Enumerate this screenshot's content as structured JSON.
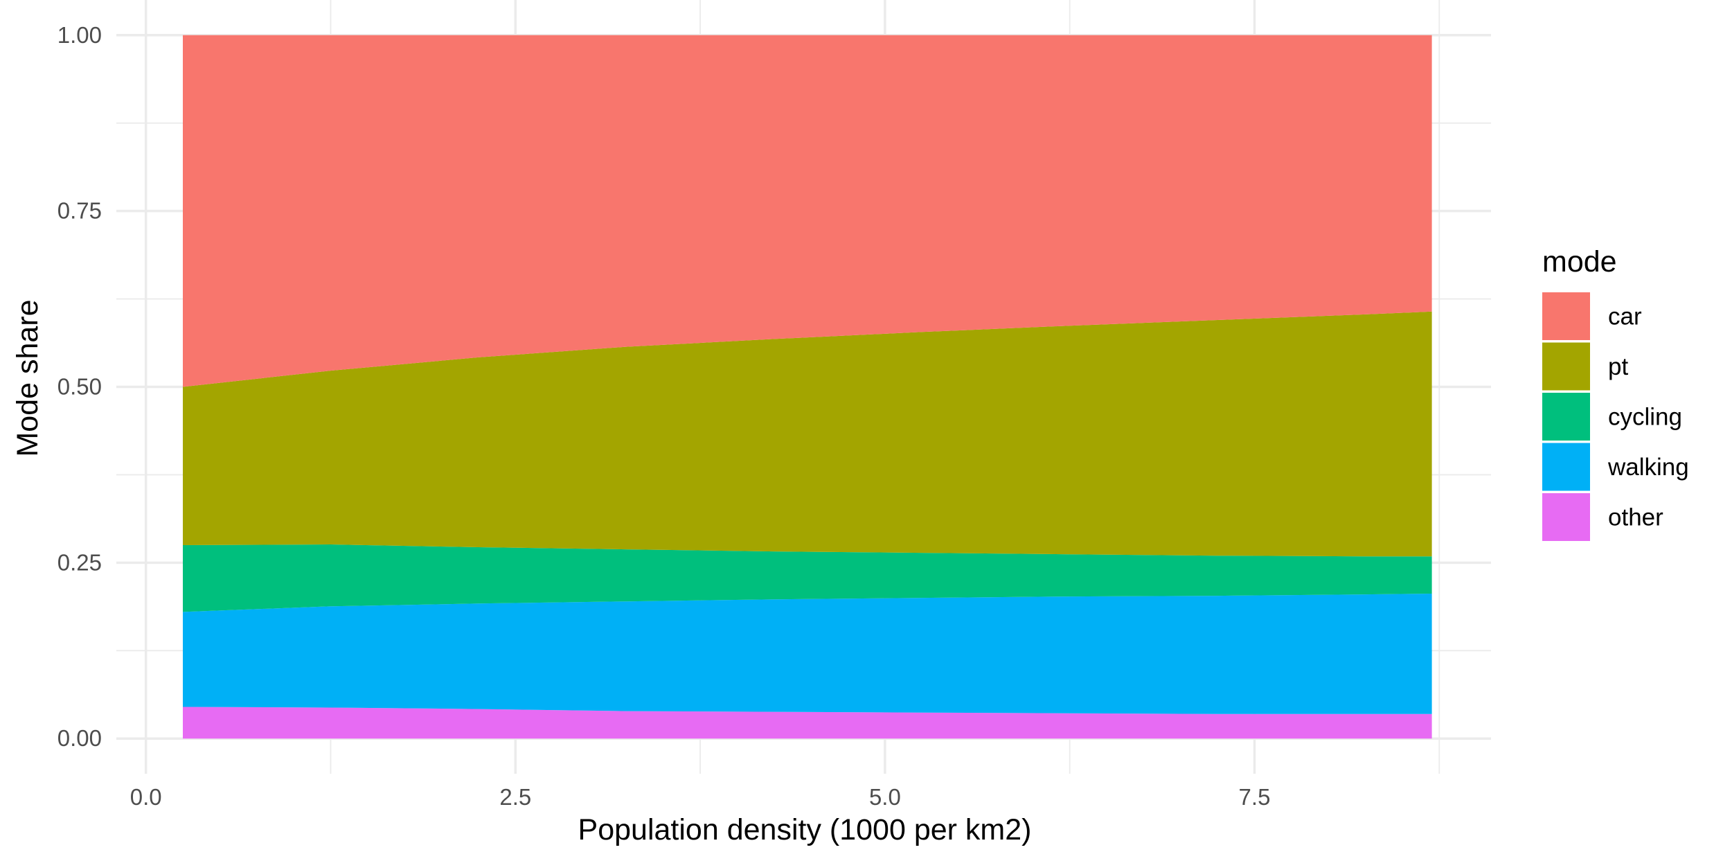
{
  "chart_data": {
    "type": "area",
    "stacked": "fill",
    "xlabel": "Population density (1000 per km2)",
    "ylabel": "Mode share",
    "xlim": [
      -0.2,
      9.1
    ],
    "ylim": [
      -0.05,
      1.05
    ],
    "x_ticks": [
      0,
      2.5,
      5,
      7.5
    ],
    "x_tick_labels": [
      "0.0",
      "2.5",
      "5.0",
      "7.5"
    ],
    "y_ticks": [
      0,
      0.25,
      0.5,
      0.75,
      1
    ],
    "y_tick_labels": [
      "0.00",
      "0.25",
      "0.50",
      "0.75",
      "1.00"
    ],
    "grid": true,
    "legend": {
      "title": "mode",
      "position": "right"
    },
    "x": [
      0.25,
      1.25,
      2.25,
      3.25,
      4.25,
      5.25,
      6.25,
      7.25,
      8.25,
      8.7
    ],
    "series": [
      {
        "name": "car",
        "color": "#F8766D",
        "values": [
          0.5,
          0.477,
          0.458,
          0.443,
          0.432,
          0.422,
          0.413,
          0.405,
          0.397,
          0.393
        ]
      },
      {
        "name": "pt",
        "color": "#A3A500",
        "values": [
          0.225,
          0.247,
          0.27,
          0.288,
          0.302,
          0.314,
          0.325,
          0.335,
          0.344,
          0.348
        ]
      },
      {
        "name": "cycling",
        "color": "#00BF7D",
        "values": [
          0.095,
          0.088,
          0.08,
          0.074,
          0.068,
          0.064,
          0.06,
          0.057,
          0.054,
          0.053
        ]
      },
      {
        "name": "walking",
        "color": "#00B0F6",
        "values": [
          0.135,
          0.144,
          0.15,
          0.156,
          0.16,
          0.163,
          0.166,
          0.168,
          0.17,
          0.171
        ]
      },
      {
        "name": "other",
        "color": "#E76BF3",
        "values": [
          0.045,
          0.044,
          0.042,
          0.039,
          0.038,
          0.037,
          0.036,
          0.035,
          0.035,
          0.035
        ]
      }
    ]
  }
}
